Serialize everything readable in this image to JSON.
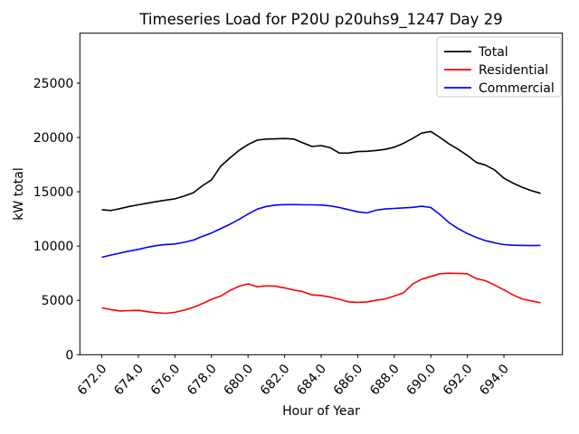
{
  "chart_data": {
    "type": "line",
    "title": "Timeseries Load for P20U p20uhs9_1247  Day 29",
    "xlabel": "Hour of Year",
    "ylabel": "kW total",
    "xlim": [
      670.8,
      697.2
    ],
    "ylim": [
      0,
      29600
    ],
    "x_start": 672.0,
    "x_step": 0.5,
    "xticks": [
      672.0,
      674.0,
      676.0,
      678.0,
      680.0,
      682.0,
      684.0,
      686.0,
      688.0,
      690.0,
      692.0,
      694.0
    ],
    "xtick_labels": [
      "672.0",
      "674.0",
      "676.0",
      "678.0",
      "680.0",
      "682.0",
      "684.0",
      "686.0",
      "688.0",
      "690.0",
      "692.0",
      "694.0"
    ],
    "xtick_rotation_deg": -48,
    "yticks": [
      0,
      5000,
      10000,
      15000,
      20000,
      25000
    ],
    "ytick_labels": [
      "0",
      "5000",
      "10000",
      "15000",
      "20000",
      "25000"
    ],
    "grid": false,
    "legend": {
      "position": "upper right",
      "entries": [
        "Total",
        "Residential",
        "Commercial"
      ]
    },
    "series": [
      {
        "name": "Total",
        "color": "#000000",
        "values": [
          13350,
          13280,
          13450,
          13650,
          13800,
          13950,
          14100,
          14230,
          14350,
          14600,
          14900,
          15550,
          16100,
          17350,
          18100,
          18800,
          19350,
          19750,
          19850,
          19870,
          19900,
          19850,
          19500,
          19170,
          19250,
          19050,
          18560,
          18560,
          18700,
          18730,
          18800,
          18900,
          19100,
          19450,
          19900,
          20400,
          20550,
          20000,
          19400,
          18900,
          18350,
          17700,
          17450,
          17000,
          16250,
          15800,
          15420,
          15100,
          14860
        ]
      },
      {
        "name": "Residential",
        "color": "#ff0000",
        "values": [
          4310,
          4150,
          4030,
          4060,
          4090,
          3950,
          3860,
          3810,
          3900,
          4100,
          4350,
          4700,
          5100,
          5400,
          5900,
          6300,
          6530,
          6250,
          6350,
          6300,
          6150,
          5950,
          5800,
          5500,
          5450,
          5300,
          5100,
          4860,
          4820,
          4860,
          5000,
          5140,
          5400,
          5690,
          6500,
          6950,
          7200,
          7450,
          7500,
          7480,
          7450,
          7000,
          6810,
          6400,
          5970,
          5500,
          5140,
          4950,
          4780
        ]
      },
      {
        "name": "Commercial",
        "color": "#0000ff",
        "values": [
          8975,
          9170,
          9360,
          9540,
          9700,
          9900,
          10050,
          10150,
          10200,
          10350,
          10550,
          10900,
          11200,
          11600,
          12000,
          12450,
          12950,
          13400,
          13650,
          13780,
          13820,
          13820,
          13800,
          13800,
          13780,
          13700,
          13550,
          13350,
          13150,
          13050,
          13300,
          13420,
          13470,
          13520,
          13570,
          13670,
          13550,
          12900,
          12150,
          11600,
          11150,
          10800,
          10500,
          10300,
          10140,
          10080,
          10060,
          10050,
          10060
        ]
      }
    ]
  }
}
